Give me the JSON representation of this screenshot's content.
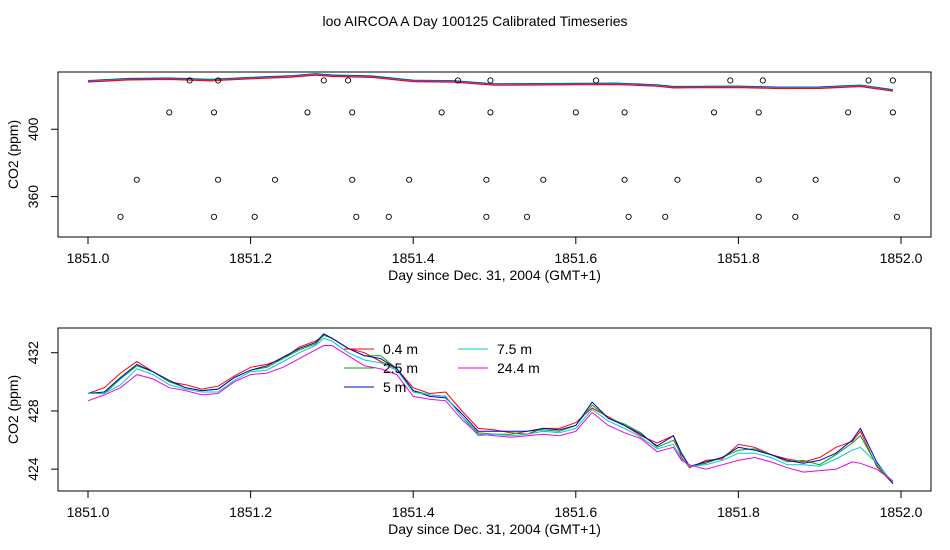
{
  "figure": {
    "title": "loo AIRCOA A  Day 100125  Calibrated Timeseries"
  },
  "colors": {
    "0.4 m": "#ff0000",
    "2.5 m": "#00aa00",
    "5 m": "#0000cc",
    "7.5 m": "#00cccc",
    "24.4 m": "#ee00ee"
  },
  "chart_data": [
    {
      "type": "line",
      "panel": "top",
      "title": "",
      "xlabel": "Day since Dec. 31, 2004 (GMT+1)",
      "ylabel": "CO2 (ppm)",
      "xlim": [
        1851.0,
        1852.0
      ],
      "ylim": [
        336,
        434
      ],
      "x_ticks": [
        "1851.0",
        "1851.2",
        "1851.4",
        "1851.6",
        "1851.8",
        "1852.0"
      ],
      "y_ticks": [
        "360",
        "400"
      ],
      "x_tick_values": [
        1851.0,
        1851.2,
        1851.4,
        1851.6,
        1851.8,
        1852.0
      ],
      "y_tick_values": [
        360,
        400
      ],
      "grid": false,
      "line_x": [
        1851.0,
        1851.05,
        1851.1,
        1851.15,
        1851.2,
        1851.25,
        1851.28,
        1851.3,
        1851.35,
        1851.4,
        1851.45,
        1851.5,
        1851.55,
        1851.6,
        1851.65,
        1851.7,
        1851.72,
        1851.75,
        1851.8,
        1851.85,
        1851.9,
        1851.95,
        1851.99
      ],
      "line_y": [
        428.5,
        429.7,
        430.0,
        429.2,
        430.4,
        431.4,
        432.6,
        431.8,
        431.2,
        428.7,
        428.4,
        426.6,
        426.7,
        426.9,
        427.0,
        426.0,
        425.0,
        425.1,
        425.2,
        424.6,
        424.7,
        425.8,
        423.1
      ],
      "points": {
        "x": [
          1851.04,
          1851.06,
          1851.1,
          1851.125,
          1851.155,
          1851.155,
          1851.16,
          1851.16,
          1851.205,
          1851.23,
          1851.27,
          1851.29,
          1851.32,
          1851.325,
          1851.325,
          1851.33,
          1851.37,
          1851.395,
          1851.435,
          1851.455,
          1851.49,
          1851.49,
          1851.495,
          1851.495,
          1851.54,
          1851.56,
          1851.6,
          1851.625,
          1851.66,
          1851.66,
          1851.665,
          1851.71,
          1851.725,
          1851.77,
          1851.79,
          1851.825,
          1851.825,
          1851.825,
          1851.83,
          1851.87,
          1851.895,
          1851.935,
          1851.96,
          1851.99,
          1851.99,
          1851.995,
          1851.995
        ],
        "y": [
          348,
          370,
          410,
          429,
          348,
          410,
          429,
          370,
          348,
          370,
          410,
          429,
          429,
          410,
          370,
          348,
          348,
          370,
          410,
          429,
          348,
          370,
          410,
          429,
          348,
          370,
          410,
          429,
          410,
          370,
          348,
          348,
          370,
          410,
          429,
          348,
          370,
          410,
          429,
          348,
          370,
          410,
          429,
          429,
          410,
          370,
          348
        ]
      }
    },
    {
      "type": "line",
      "panel": "bottom",
      "title": "",
      "xlabel": "Day since Dec. 31, 2004 (GMT+1)",
      "ylabel": "CO2 (ppm)",
      "xlim": [
        1851.0,
        1852.0
      ],
      "ylim": [
        422.5,
        433.7
      ],
      "x_ticks": [
        "1851.0",
        "1851.2",
        "1851.4",
        "1851.6",
        "1851.8",
        "1852.0"
      ],
      "y_ticks": [
        "424",
        "428",
        "432"
      ],
      "x_tick_values": [
        1851.0,
        1851.2,
        1851.4,
        1851.6,
        1851.8,
        1852.0
      ],
      "y_tick_values": [
        424,
        428,
        432
      ],
      "grid": false,
      "legend_position": "top-center",
      "x": [
        1851.0,
        1851.02,
        1851.04,
        1851.06,
        1851.08,
        1851.1,
        1851.12,
        1851.14,
        1851.16,
        1851.18,
        1851.2,
        1851.22,
        1851.24,
        1851.26,
        1851.28,
        1851.29,
        1851.3,
        1851.32,
        1851.34,
        1851.36,
        1851.38,
        1851.4,
        1851.42,
        1851.44,
        1851.46,
        1851.48,
        1851.5,
        1851.52,
        1851.54,
        1851.56,
        1851.58,
        1851.6,
        1851.62,
        1851.64,
        1851.66,
        1851.68,
        1851.7,
        1851.72,
        1851.73,
        1851.74,
        1851.76,
        1851.78,
        1851.8,
        1851.82,
        1851.84,
        1851.86,
        1851.88,
        1851.9,
        1851.92,
        1851.94,
        1851.95,
        1851.97,
        1851.99
      ],
      "series": [
        {
          "name": "0.4 m",
          "values": [
            429.2,
            429.6,
            430.6,
            431.4,
            430.7,
            430.0,
            429.8,
            429.5,
            429.7,
            430.4,
            431.0,
            431.2,
            431.6,
            432.4,
            432.8,
            433.2,
            433.0,
            432.3,
            432.0,
            431.4,
            430.9,
            429.6,
            429.2,
            429.3,
            428.0,
            426.8,
            426.7,
            426.5,
            426.4,
            426.8,
            426.8,
            427.2,
            428.2,
            427.6,
            427.0,
            426.3,
            425.8,
            426.3,
            424.8,
            424.1,
            424.6,
            424.7,
            425.7,
            425.5,
            425.0,
            424.7,
            424.5,
            424.8,
            425.5,
            425.9,
            426.6,
            424.2,
            423.0
          ]
        },
        {
          "name": "2.5 m",
          "values": [
            429.2,
            429.2,
            430.2,
            431.1,
            430.7,
            430.0,
            429.6,
            429.4,
            429.5,
            430.3,
            430.8,
            431.0,
            431.6,
            432.2,
            432.6,
            433.2,
            433.0,
            432.3,
            431.8,
            431.8,
            430.9,
            429.4,
            429.1,
            429.0,
            427.6,
            426.5,
            426.4,
            426.4,
            426.6,
            426.7,
            426.6,
            427.0,
            428.4,
            427.5,
            427.1,
            426.5,
            425.5,
            426.0,
            425.0,
            424.2,
            424.4,
            424.8,
            425.3,
            425.4,
            425.0,
            424.5,
            424.6,
            424.3,
            425.0,
            425.8,
            426.3,
            424.3,
            423.0
          ]
        },
        {
          "name": "5 m",
          "values": [
            429.2,
            429.3,
            430.3,
            431.2,
            430.7,
            430.1,
            429.6,
            429.4,
            429.5,
            430.3,
            430.8,
            431.1,
            431.7,
            432.3,
            432.7,
            433.3,
            433.0,
            432.3,
            431.8,
            431.6,
            430.9,
            429.4,
            429.0,
            428.9,
            427.8,
            426.6,
            426.6,
            426.6,
            426.6,
            426.8,
            426.7,
            427.0,
            428.6,
            427.5,
            427.0,
            426.4,
            425.6,
            426.3,
            425.1,
            424.2,
            424.5,
            424.8,
            425.5,
            425.3,
            425.0,
            424.6,
            424.4,
            424.6,
            425.1,
            426.0,
            426.8,
            424.5,
            423.0
          ]
        },
        {
          "name": "7.5 m",
          "values": [
            429.2,
            429.2,
            429.8,
            430.9,
            430.5,
            429.8,
            429.5,
            429.3,
            429.3,
            430.1,
            430.7,
            430.8,
            431.4,
            432.0,
            432.5,
            433.0,
            432.8,
            432.0,
            431.5,
            431.3,
            430.8,
            429.3,
            429.1,
            429.0,
            427.6,
            426.3,
            426.4,
            426.3,
            426.4,
            426.6,
            426.5,
            426.8,
            428.1,
            427.3,
            426.8,
            426.2,
            425.4,
            425.7,
            424.7,
            424.2,
            424.3,
            424.6,
            425.1,
            425.1,
            424.8,
            424.3,
            424.3,
            424.2,
            424.7,
            425.3,
            425.5,
            424.4,
            423.1
          ]
        },
        {
          "name": "24.4 m",
          "values": [
            428.7,
            429.1,
            429.6,
            430.5,
            430.2,
            429.6,
            429.4,
            429.1,
            429.2,
            430.0,
            430.5,
            430.6,
            431.0,
            431.6,
            432.2,
            432.5,
            432.5,
            431.8,
            431.1,
            430.9,
            430.5,
            429.0,
            428.8,
            428.7,
            427.4,
            426.4,
            426.3,
            426.2,
            426.3,
            426.4,
            426.3,
            426.6,
            427.9,
            427.0,
            426.5,
            426.1,
            425.2,
            425.5,
            424.6,
            424.3,
            424.0,
            424.3,
            424.6,
            424.8,
            424.5,
            424.1,
            423.8,
            423.9,
            424.0,
            424.5,
            424.4,
            424.0,
            423.2
          ]
        }
      ]
    }
  ]
}
